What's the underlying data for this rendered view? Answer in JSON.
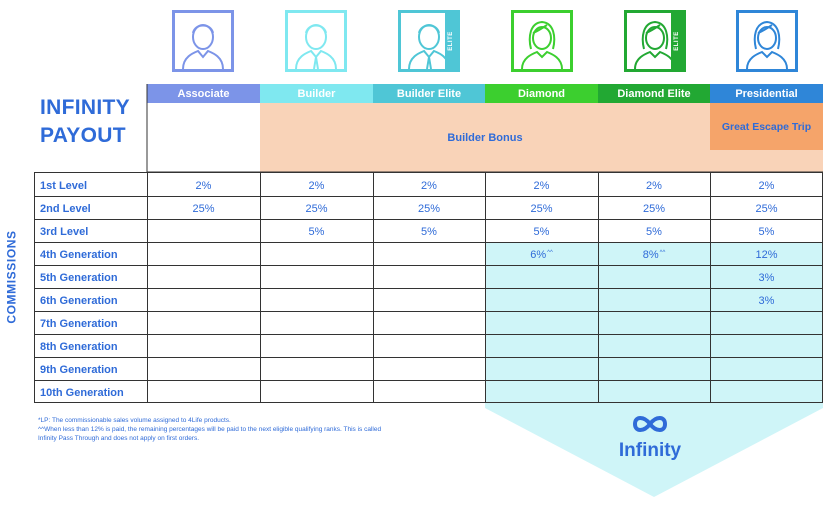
{
  "title": {
    "line1": "INFINITY",
    "line2": "PAYOUT"
  },
  "ranks": [
    {
      "label": "Associate",
      "color": "#7c94e8",
      "border": "#7c94e8",
      "elite": false
    },
    {
      "label": "Builder",
      "color": "#7fe8f0",
      "border": "#7fe8f0",
      "elite": false
    },
    {
      "label": "Builder Elite",
      "color": "#4fc6d6",
      "border": "#4fc6d6",
      "elite": true
    },
    {
      "label": "Diamond",
      "color": "#3ccf2f",
      "border": "#3ccf2f",
      "elite": false
    },
    {
      "label": "Diamond Elite",
      "color": "#22a833",
      "border": "#22a833",
      "elite": true
    },
    {
      "label": "Presidential",
      "color": "#2f86d8",
      "border": "#2f86d8",
      "elite": false
    }
  ],
  "elite_tag": "ELITE",
  "bonus": {
    "builder_bonus": "Builder Bonus",
    "great_escape": "Great Escape Trip"
  },
  "side_label": "COMMISSIONS",
  "rows": [
    {
      "label": "1st Level",
      "values": [
        "2%",
        "2%",
        "2%",
        "2%",
        "2%",
        "2%"
      ]
    },
    {
      "label": "2nd Level",
      "values": [
        "25%",
        "25%",
        "25%",
        "25%",
        "25%",
        "25%"
      ]
    },
    {
      "label": "3rd Level",
      "values": [
        "",
        "5%",
        "5%",
        "5%",
        "5%",
        "5%"
      ]
    },
    {
      "label": "4th Generation",
      "values": [
        "",
        "",
        "",
        "6%",
        "8%",
        "12%"
      ]
    },
    {
      "label": "5th Generation",
      "values": [
        "",
        "",
        "",
        "",
        "",
        "3%"
      ]
    },
    {
      "label": "6th Generation",
      "values": [
        "",
        "",
        "",
        "",
        "",
        "3%"
      ]
    },
    {
      "label": "7th Generation",
      "values": [
        "",
        "",
        "",
        "",
        "",
        ""
      ]
    },
    {
      "label": "8th Generation",
      "values": [
        "",
        "",
        "",
        "",
        "",
        ""
      ]
    },
    {
      "label": "9th Generation",
      "values": [
        "",
        "",
        "",
        "",
        "",
        ""
      ]
    },
    {
      "label": "10th Generation",
      "values": [
        "",
        "",
        "",
        "",
        "",
        ""
      ]
    }
  ],
  "superscript_mark": "^^",
  "footnotes": {
    "line1": "*LP: The commissionable sales volume assigned to 4Life products.",
    "line2": "^^When less than 12% is paid, the remaining percentages will be paid to the next eligible qualifying ranks. This is called",
    "line3": "Infinity Pass Through and does not apply on first orders."
  },
  "infinity": {
    "label": "Infinity",
    "symbol": "∞",
    "color": "#2f6bd8"
  },
  "colors": {
    "accent": "#2f6bd8",
    "light_cyan": "#cff5f8",
    "peach": "#f9d3b8",
    "orange": "#f5a46a"
  }
}
